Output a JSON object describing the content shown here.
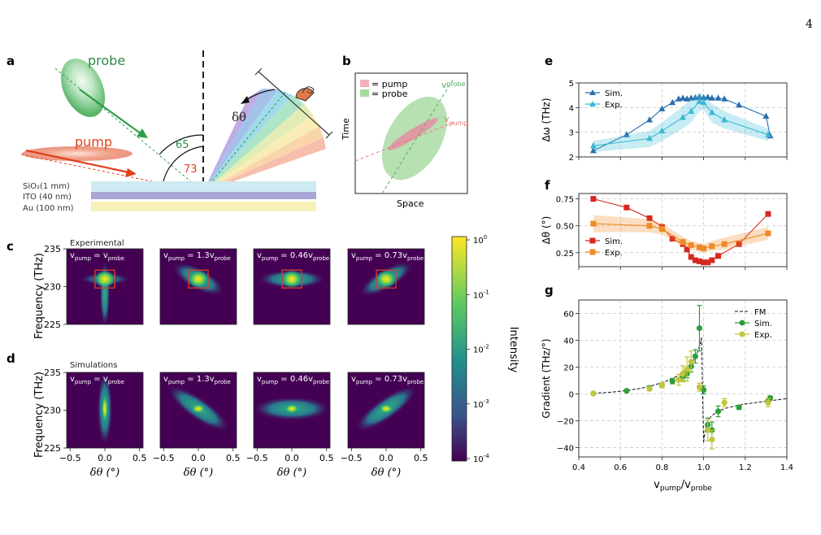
{
  "page_number": "4",
  "panel_labels": {
    "a": "a",
    "b": "b",
    "c": "c",
    "d": "d",
    "e": "e",
    "f": "f",
    "g": "g"
  },
  "panel_a": {
    "probe_label": "probe",
    "pump_label": "pump",
    "probe_angle": "65",
    "pump_angle": "73",
    "dtheta": "δθ",
    "layers": [
      {
        "label": "SiO₂(1 mm)",
        "color": "#cfeaf2"
      },
      {
        "label": "ITO (40 nm)",
        "color": "#a8a6d6"
      },
      {
        "label": "Au (100 nm)",
        "color": "#f7f0b8"
      }
    ],
    "colors": {
      "probe": "#2e9e4a",
      "pump": "#e2401c"
    }
  },
  "panel_b": {
    "legend_pump": "= pump",
    "legend_probe": "= probe",
    "xlabel": "Space",
    "ylabel": "Time",
    "v_probe_main": "v",
    "v_probe_sub": "probe",
    "v_pump_main": "v",
    "v_pump_sub": "pump"
  },
  "colorbar": {
    "label": "Intensity",
    "tick_base": "10",
    "tick_exponents": [
      "0",
      "-1",
      "-2",
      "-3",
      "-4"
    ]
  },
  "maps": {
    "row_c_title": "Experimental",
    "row_d_title": "Simulations",
    "ylabel": "Frequency (THz)",
    "xlabel": "δθ (°)",
    "yticks": [
      "225",
      "230",
      "235"
    ],
    "xticks": [
      "−0.5",
      "0.0",
      "0.5"
    ],
    "panel_titles": [
      {
        "a": "v",
        "a_sub": "pump",
        "mid": " = ",
        "coef": "",
        "b": "v",
        "b_sub": "probe"
      },
      {
        "a": "v",
        "a_sub": "pump",
        "mid": " = ",
        "coef": "1.3",
        "b": "v",
        "b_sub": "probe"
      },
      {
        "a": "v",
        "a_sub": "pump",
        "mid": " = ",
        "coef": "0.46",
        "b": "v",
        "b_sub": "probe"
      },
      {
        "a": "v",
        "a_sub": "pump",
        "mid": " = ",
        "coef": "0.73",
        "b": "v",
        "b_sub": "probe"
      }
    ]
  },
  "chart_data": [
    {
      "id": "e",
      "type": "line",
      "ylabel": "Δω (THz)",
      "xlim": [
        0.4,
        1.4
      ],
      "ylim": [
        2,
        5
      ],
      "yticks": [
        "2",
        "3",
        "4",
        "5"
      ],
      "grid": true,
      "legend_position": "top-left",
      "series": [
        {
          "name": "Sim.",
          "color": "#2b6fae",
          "marker": "triangle",
          "x": [
            0.47,
            0.63,
            0.74,
            0.8,
            0.85,
            0.88,
            0.9,
            0.92,
            0.94,
            0.96,
            0.98,
            1.0,
            1.02,
            1.04,
            1.07,
            1.1,
            1.17,
            1.3,
            1.32
          ],
          "y": [
            2.25,
            2.9,
            3.5,
            3.95,
            4.2,
            4.35,
            4.38,
            4.35,
            4.38,
            4.4,
            4.42,
            4.4,
            4.42,
            4.38,
            4.38,
            4.35,
            4.1,
            3.65,
            2.85
          ]
        },
        {
          "name": "Exp.",
          "color": "#3ab9d4",
          "marker": "triangle",
          "x": [
            0.47,
            0.74,
            0.8,
            0.9,
            0.94,
            0.98,
            1.0,
            1.04,
            1.1,
            1.31
          ],
          "y": [
            2.45,
            2.75,
            3.05,
            3.6,
            3.85,
            4.25,
            4.2,
            3.8,
            3.5,
            2.9
          ],
          "band_lower": [
            2.2,
            2.4,
            2.65,
            3.15,
            3.4,
            3.85,
            3.9,
            3.4,
            3.15,
            2.65
          ],
          "band_upper": [
            2.65,
            3.05,
            3.4,
            4.05,
            4.35,
            4.6,
            4.55,
            4.15,
            3.85,
            3.15
          ]
        }
      ]
    },
    {
      "id": "f",
      "type": "line",
      "ylabel": "Δθ (°)",
      "xlim": [
        0.4,
        1.4
      ],
      "ylim": [
        0.12,
        0.8
      ],
      "yticks": [
        "0.25",
        "0.50",
        "0.75"
      ],
      "grid": true,
      "legend_position": "lower-left",
      "series": [
        {
          "name": "Sim.",
          "color": "#d6281f",
          "marker": "square",
          "x": [
            0.47,
            0.63,
            0.74,
            0.8,
            0.85,
            0.9,
            0.92,
            0.94,
            0.96,
            0.98,
            1.0,
            1.02,
            1.04,
            1.07,
            1.17,
            1.31
          ],
          "y": [
            0.75,
            0.67,
            0.57,
            0.49,
            0.38,
            0.33,
            0.28,
            0.21,
            0.18,
            0.17,
            0.16,
            0.16,
            0.18,
            0.22,
            0.33,
            0.61
          ]
        },
        {
          "name": "Exp.",
          "color": "#f08a25",
          "marker": "square",
          "x": [
            0.47,
            0.74,
            0.8,
            0.9,
            0.94,
            0.98,
            1.0,
            1.04,
            1.1,
            1.31
          ],
          "y": [
            0.52,
            0.5,
            0.47,
            0.35,
            0.32,
            0.3,
            0.29,
            0.31,
            0.33,
            0.43
          ],
          "band_lower": [
            0.44,
            0.44,
            0.42,
            0.31,
            0.28,
            0.26,
            0.25,
            0.27,
            0.28,
            0.37
          ],
          "band_upper": [
            0.6,
            0.56,
            0.52,
            0.4,
            0.36,
            0.34,
            0.33,
            0.36,
            0.39,
            0.49
          ]
        }
      ]
    },
    {
      "id": "g",
      "type": "scatter",
      "ylabel": "Gradient (THz/°)",
      "xlabel_main": "v",
      "xlabel_num_sub": "pump",
      "xlabel_den_sub": "probe",
      "xlim": [
        0.4,
        1.4
      ],
      "ylim": [
        -47,
        70
      ],
      "xticks": [
        "0.4",
        "0.6",
        "0.8",
        "1.0",
        "1.2",
        "1.4"
      ],
      "yticks": [
        "−40",
        "−20",
        "0",
        "20",
        "40",
        "60"
      ],
      "grid": true,
      "legend_position": "top-right",
      "series": [
        {
          "name": "FM",
          "type": "line",
          "style": "dashed",
          "color": "#111111",
          "x": [
            0.47,
            0.55,
            0.63,
            0.7,
            0.76,
            0.82,
            0.87,
            0.91,
            0.94,
            0.96,
            0.975,
            0.985,
            0.99,
            1.0,
            1.005,
            1.01,
            1.02,
            1.04,
            1.07,
            1.1,
            1.15,
            1.2,
            1.3,
            1.4
          ],
          "y": [
            0.5,
            1.2,
            2.5,
            4.2,
            6.5,
            9.5,
            13,
            17.5,
            22,
            27,
            33,
            38,
            42,
            -36,
            -30,
            -25,
            -20,
            -16,
            -13,
            -11,
            -9,
            -7.5,
            -5.5,
            -3.5
          ]
        },
        {
          "name": "Sim.",
          "type": "errorbar",
          "color": "#2e9e3a",
          "x": [
            0.47,
            0.63,
            0.74,
            0.8,
            0.85,
            0.9,
            0.92,
            0.94,
            0.96,
            0.98,
            1.0,
            1.02,
            1.04,
            1.07,
            1.17,
            1.31,
            1.32
          ],
          "y": [
            0.3,
            2.3,
            4.5,
            6.5,
            9.5,
            13,
            15,
            20.5,
            28,
            49,
            3,
            -23,
            -27,
            -13,
            -10,
            -5.5,
            -3
          ],
          "err": [
            0.5,
            1,
            1.5,
            1.5,
            2,
            3,
            3,
            4,
            5,
            17,
            3,
            5,
            6,
            4,
            1.5,
            2,
            1.5
          ]
        },
        {
          "name": "Exp.",
          "type": "errorbar",
          "color": "#c2c53a",
          "x": [
            0.47,
            0.74,
            0.8,
            0.88,
            0.9,
            0.92,
            0.94,
            0.98,
            1.02,
            1.04,
            1.1,
            1.31
          ],
          "y": [
            0.3,
            3.8,
            6.5,
            10.5,
            15,
            18.5,
            24,
            5,
            -27,
            -34,
            -6.5,
            -6.5
          ],
          "err": [
            0.5,
            1.5,
            2,
            4,
            6,
            9,
            8,
            3,
            8,
            7,
            3,
            3
          ]
        }
      ]
    }
  ]
}
